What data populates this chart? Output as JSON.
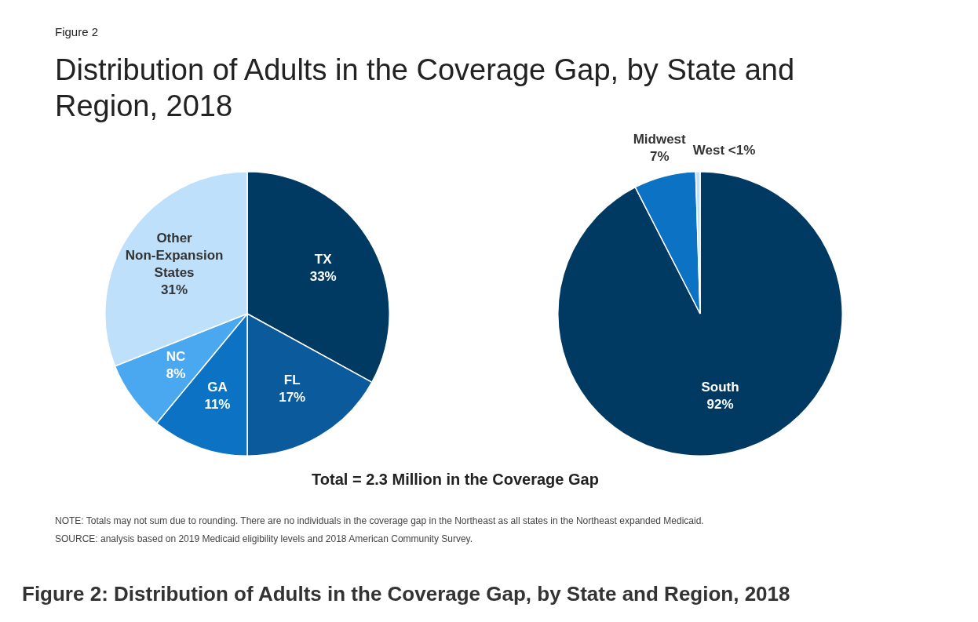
{
  "chart_data": [
    {
      "type": "pie",
      "title": "Distribution of Adults in the Coverage Gap, by State and Region, 2018",
      "categories": [
        "TX",
        "FL",
        "GA",
        "NC",
        "Other Non-Expansion States"
      ],
      "values": [
        33,
        17,
        11,
        8,
        31
      ],
      "value_labels": [
        "33%",
        "17%",
        "11%",
        "8%",
        "31%"
      ],
      "colors": [
        "#003a63",
        "#0b5a9c",
        "#0b72c4",
        "#49a8f0",
        "#bfe0fb"
      ],
      "legend": false,
      "annotations": [
        "Figure 2",
        "Total = 2.3 Million in the Coverage Gap",
        "NOTE: Totals may not sum due to rounding. There are no individuals in the coverage gap in the Northeast as all states in the Northeast expanded Medicaid.",
        "SOURCE: analysis based on 2019 Medicaid eligibility levels and 2018 American Community Survey.",
        "Figure 2: Distribution of Adults in the Coverage Gap, by State and Region, 2018"
      ]
    },
    {
      "type": "pie",
      "categories": [
        "South",
        "Midwest",
        "West"
      ],
      "values": [
        92,
        7,
        0.5
      ],
      "value_labels": [
        "92%",
        "7%",
        "<1%"
      ],
      "colors": [
        "#003a63",
        "#0b72c4",
        "#bfe0fb"
      ],
      "legend": false
    }
  ]
}
